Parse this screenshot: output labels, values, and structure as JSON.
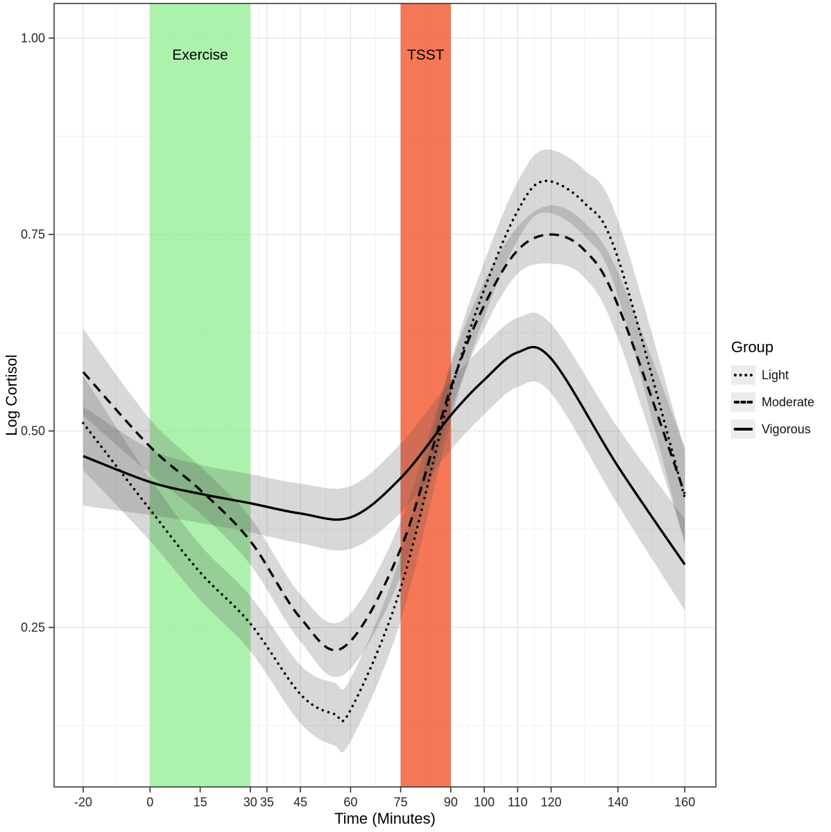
{
  "chart_data": {
    "type": "line",
    "title": "",
    "xlabel": "Time (Minutes)",
    "ylabel": "Log Cortisol",
    "xlim": [
      -28.7,
      169.3
    ],
    "ylim": [
      0.047,
      1.044
    ],
    "grid": "on",
    "x_tick_values": [
      -20,
      0,
      15,
      30,
      35,
      45,
      60,
      75,
      90,
      100,
      110,
      120,
      140,
      160
    ],
    "x_tick_labels": [
      "-20",
      "0",
      "15",
      "30",
      "35",
      "45",
      "60",
      "75",
      "90",
      "100",
      "110",
      "120",
      "140",
      "160"
    ],
    "y_tick_values": [
      0.25,
      0.5,
      0.75,
      1.0
    ],
    "y_tick_labels": [
      "0.25",
      "0.50",
      "0.75",
      "1.00"
    ],
    "y_minor_values": [
      0.125,
      0.375,
      0.625,
      0.875
    ],
    "bands": [
      {
        "from": 0,
        "to": 30,
        "color": "#90ee90",
        "opacity": 0.75
      },
      {
        "from": 75,
        "to": 90,
        "color": "#f4552c",
        "opacity": 0.8
      }
    ],
    "annotations": [
      {
        "label": "Exercise",
        "x": 15,
        "y": 0.978
      },
      {
        "label": "TSST",
        "x": 82.5,
        "y": 0.978
      }
    ],
    "ribbon": {
      "color": "#4d4d4d",
      "opacity": 0.22
    },
    "legend": {
      "title": "Group",
      "position": "right"
    },
    "series": [
      {
        "name": "Light",
        "linetype": "dotted",
        "color": "#000000",
        "x": [
          -20,
          0,
          15,
          30,
          45,
          55,
          60,
          75,
          90,
          100,
          110,
          118,
          130,
          140,
          160
        ],
        "y": [
          0.51,
          0.4,
          0.32,
          0.255,
          0.165,
          0.14,
          0.145,
          0.3,
          0.55,
          0.68,
          0.78,
          0.818,
          0.79,
          0.72,
          0.415
        ],
        "lo": [
          0.45,
          0.36,
          0.285,
          0.22,
          0.128,
          0.1,
          0.105,
          0.258,
          0.513,
          0.645,
          0.743,
          0.778,
          0.748,
          0.672,
          0.355
        ],
        "hi": [
          0.57,
          0.44,
          0.355,
          0.29,
          0.202,
          0.18,
          0.185,
          0.342,
          0.587,
          0.715,
          0.817,
          0.858,
          0.832,
          0.768,
          0.475
        ]
      },
      {
        "name": "Moderate",
        "linetype": "dashed",
        "color": "#000000",
        "x": [
          -20,
          0,
          15,
          30,
          45,
          58,
          75,
          90,
          100,
          110,
          120,
          130,
          140,
          160
        ],
        "y": [
          0.575,
          0.48,
          0.425,
          0.36,
          0.262,
          0.225,
          0.35,
          0.555,
          0.66,
          0.73,
          0.75,
          0.73,
          0.66,
          0.42
        ],
        "lo": [
          0.52,
          0.445,
          0.395,
          0.33,
          0.232,
          0.19,
          0.315,
          0.525,
          0.63,
          0.7,
          0.713,
          0.695,
          0.618,
          0.36
        ],
        "hi": [
          0.63,
          0.515,
          0.455,
          0.39,
          0.292,
          0.26,
          0.385,
          0.585,
          0.69,
          0.76,
          0.787,
          0.765,
          0.702,
          0.48
        ]
      },
      {
        "name": "Vigorous",
        "linetype": "solid",
        "color": "#000000",
        "x": [
          -20,
          0,
          15,
          30,
          45,
          60,
          75,
          90,
          100,
          110,
          120,
          140,
          160
        ],
        "y": [
          0.468,
          0.435,
          0.42,
          0.408,
          0.395,
          0.39,
          0.44,
          0.52,
          0.565,
          0.6,
          0.592,
          0.455,
          0.33
        ],
        "lo": [
          0.405,
          0.393,
          0.383,
          0.371,
          0.357,
          0.35,
          0.396,
          0.476,
          0.521,
          0.556,
          0.548,
          0.406,
          0.272
        ],
        "hi": [
          0.531,
          0.477,
          0.457,
          0.445,
          0.433,
          0.43,
          0.484,
          0.564,
          0.609,
          0.644,
          0.636,
          0.504,
          0.388
        ]
      }
    ]
  }
}
